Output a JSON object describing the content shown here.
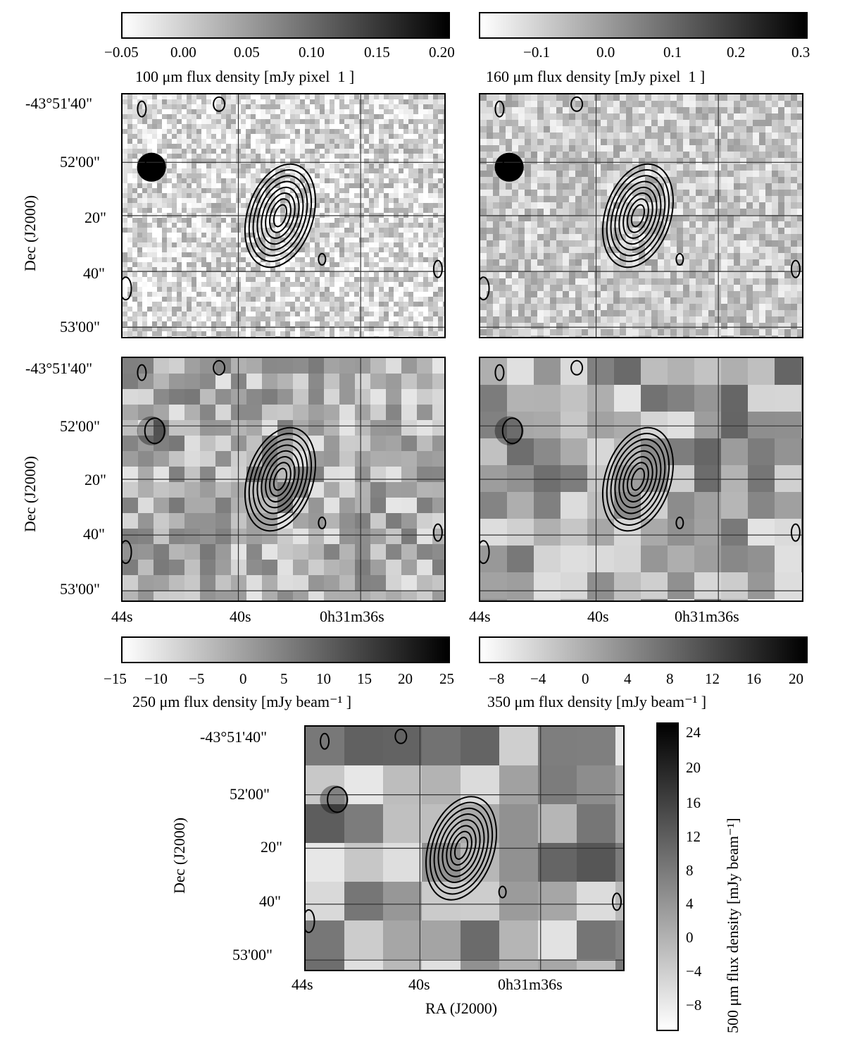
{
  "colorbars": {
    "c100": {
      "label": "100 μm flux density [mJy pixel  1 ]",
      "ticks": [
        "−0.05",
        "0.00",
        "0.05",
        "0.10",
        "0.15",
        "0.20"
      ]
    },
    "c160": {
      "label": "160 μm flux density [mJy pixel  1 ]",
      "ticks": [
        "−0.1",
        "0.0",
        "0.1",
        "0.2",
        "0.3"
      ]
    },
    "c250": {
      "label": "250 μm flux density [mJy beam⁻¹ ]",
      "ticks": [
        "−15",
        "−10",
        "−5",
        "0",
        "5",
        "10",
        "15",
        "20",
        "25"
      ]
    },
    "c350": {
      "label": "350 μm flux density [mJy beam⁻¹ ]",
      "ticks": [
        "−8",
        "−4",
        "0",
        "4",
        "8",
        "12",
        "16",
        "20"
      ]
    },
    "c500": {
      "label": "500 μm flux density [mJy beam⁻¹]",
      "ticks": [
        "24",
        "20",
        "16",
        "12",
        "8",
        "4",
        "0",
        "−4",
        "−8"
      ]
    }
  },
  "axes": {
    "dec_label": "Dec (J2000)",
    "ra_label": "RA (J2000)",
    "dec_ticks": [
      "-43°51'40\"",
      "52'00\"",
      "20\"",
      "40\"",
      "53'00\""
    ],
    "ra_ticks": [
      "44s",
      "40s",
      "0h31m36s"
    ]
  },
  "panels": [
    {
      "id": "p100",
      "band": "100 μm"
    },
    {
      "id": "p160",
      "band": "160 μm"
    },
    {
      "id": "p250",
      "band": "250 μm"
    },
    {
      "id": "p350",
      "band": "350 μm"
    },
    {
      "id": "p500",
      "band": "500 μm"
    }
  ]
}
